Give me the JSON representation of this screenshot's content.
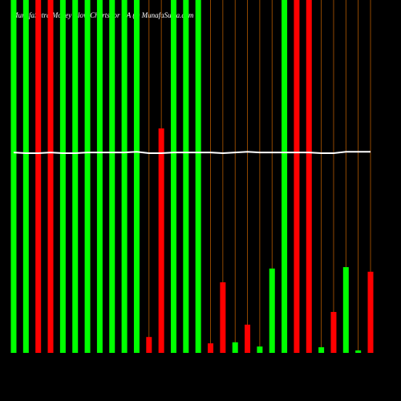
{
  "chart_data": {
    "type": "bar",
    "title": "MunafaSutra Money Flow Charts for IIA (I) MunafaSutra.com",
    "ylim": [
      0,
      100
    ],
    "values": [
      100,
      100,
      100,
      100,
      100,
      100,
      100,
      100,
      100,
      100,
      100,
      4.5,
      63.6,
      100,
      100,
      100,
      2.7,
      20,
      3,
      8,
      1.8,
      23.9,
      100,
      100,
      100,
      1.6,
      11.6,
      24.3,
      0.7,
      23
    ],
    "colors": [
      "#00ff00",
      "#00ff00",
      "#ff0000",
      "#ff0000",
      "#00ff00",
      "#00ff00",
      "#00ff00",
      "#00ff00",
      "#00ff00",
      "#00ff00",
      "#00ff00",
      "#ff0000",
      "#ff0000",
      "#00ff00",
      "#00ff00",
      "#00ff00",
      "#ff0000",
      "#ff0000",
      "#00ff00",
      "#ff0000",
      "#00ff00",
      "#00ff00",
      "#00ff00",
      "#ff0000",
      "#ff0000",
      "#00ff00",
      "#ff0000",
      "#00ff00",
      "#00ff00",
      "#ff0000"
    ],
    "line": {
      "color": "#ffffff",
      "values": [
        56.8,
        56.6,
        56.6,
        56.8,
        56.6,
        56.6,
        56.8,
        56.8,
        56.8,
        56.8,
        57.0,
        56.6,
        56.6,
        56.8,
        56.8,
        56.8,
        56.8,
        56.6,
        56.8,
        57.0,
        56.8,
        56.8,
        56.8,
        56.8,
        56.8,
        56.6,
        56.6,
        57.0,
        57.0,
        57.0
      ]
    }
  }
}
